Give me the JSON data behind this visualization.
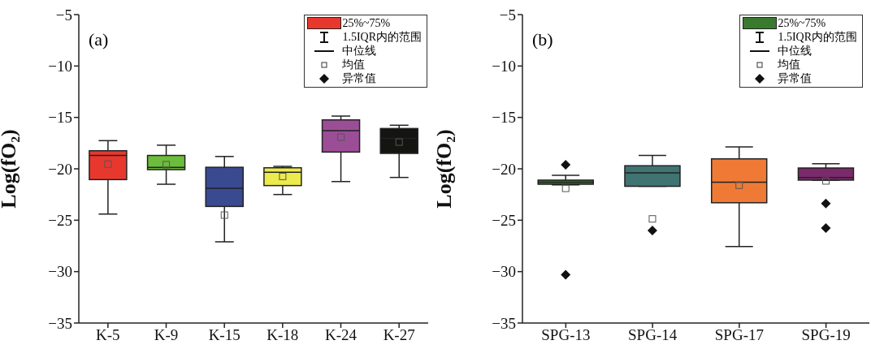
{
  "chart_data": [
    {
      "type": "box",
      "title": "(a)",
      "ylabel": "Log(fO₂)",
      "categories": [
        "K-5",
        "K-9",
        "K-15",
        "K-18",
        "K-24",
        "K-27"
      ],
      "colors": [
        "#e8382e",
        "#6cbd3c",
        "#3a4a91",
        "#ecea4c",
        "#9b4e96",
        "#141410"
      ],
      "boxes": [
        {
          "low": -24.4,
          "q1": -21.05,
          "median": -18.7,
          "q3": -18.24,
          "high": -17.26,
          "mean": -19.55
        },
        {
          "low": -21.5,
          "q1": -20.08,
          "median": -19.87,
          "q3": -18.7,
          "high": -17.7,
          "mean": -19.6
        },
        {
          "low": -27.1,
          "q1": -23.66,
          "median": -21.9,
          "q3": -19.85,
          "high": -18.8,
          "mean": -24.5
        },
        {
          "low": -22.5,
          "q1": -21.63,
          "median": -20.34,
          "q3": -19.9,
          "high": -19.76,
          "mean": -20.74
        },
        {
          "low": -21.24,
          "q1": -18.37,
          "median": -16.29,
          "q3": -15.24,
          "high": -14.87,
          "mean": -16.92
        },
        {
          "low": -20.84,
          "q1": -18.5,
          "median": -17.03,
          "q3": -16.08,
          "high": -15.76,
          "mean": -17.4
        }
      ],
      "ylim": [
        -35,
        -5
      ],
      "yticks": [
        -35,
        -30,
        -25,
        -20,
        -15,
        -10,
        -5
      ],
      "annotations": [
        "25%~75%",
        "1.5IQR内的范围",
        "中位线",
        "均值",
        "异常值"
      ]
    },
    {
      "type": "box",
      "title": "(b)",
      "ylabel": "Log(fO₂)",
      "categories": [
        "SPG-13",
        "SPG-14",
        "SPG-17",
        "SPG-19"
      ],
      "colors": [
        "#3a7a2e",
        "#3f7472",
        "#ef7a35",
        "#7b2a6b"
      ],
      "boxes": [
        {
          "low": -21.55,
          "q1": -21.5,
          "median": -21.3,
          "q3": -21.1,
          "high": -20.63,
          "mean": -21.9,
          "outliers": [
            -19.6,
            -30.3
          ]
        },
        {
          "low": -21.7,
          "q1": -21.7,
          "median": -20.4,
          "q3": -19.7,
          "high": -18.7,
          "mean": -24.87,
          "outliers": [
            -26.0
          ]
        },
        {
          "low": -27.55,
          "q1": -23.3,
          "median": -21.3,
          "q3": -19.03,
          "high": -17.87,
          "mean": -21.6
        },
        {
          "low": -21.1,
          "q1": -21.1,
          "median": -20.84,
          "q3": -19.92,
          "high": -19.5,
          "mean": -21.18,
          "outliers": [
            -23.37,
            -25.76
          ]
        }
      ],
      "ylim": [
        -35,
        -5
      ],
      "yticks": [
        -35,
        -30,
        -25,
        -20,
        -15,
        -10,
        -5
      ],
      "annotations": [
        "25%~75%",
        "1.5IQR内的范围",
        "中位线",
        "均值",
        "异常值"
      ]
    }
  ]
}
